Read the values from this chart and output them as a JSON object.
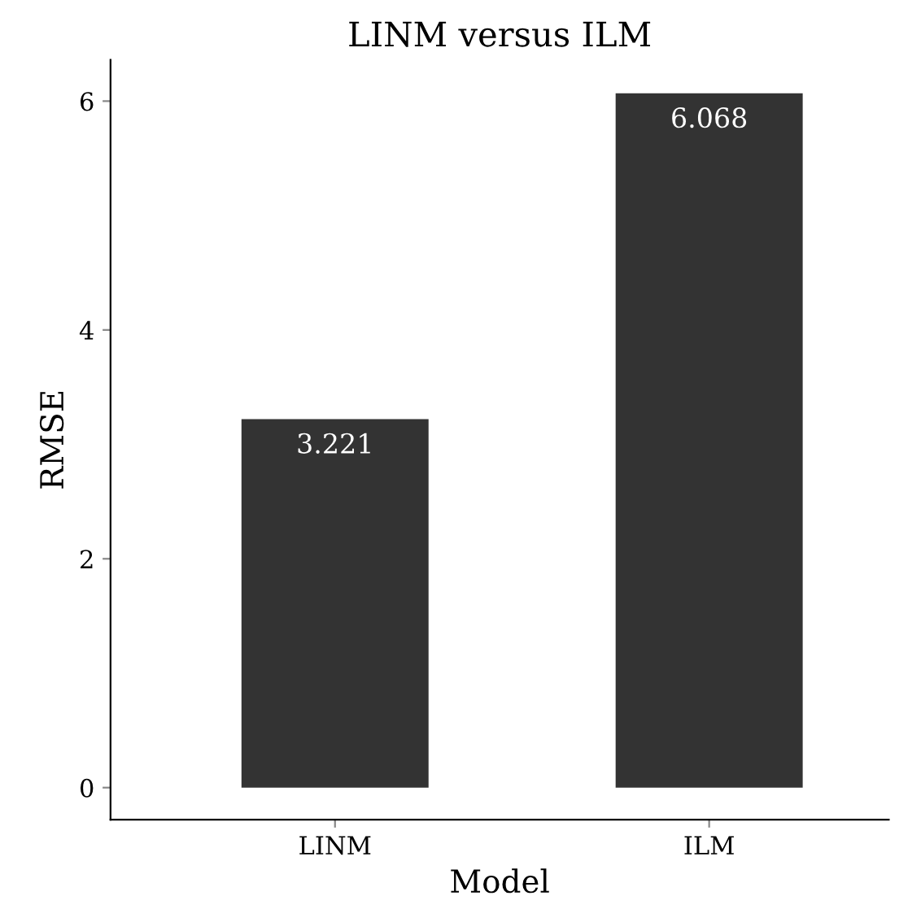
{
  "chart_data": {
    "type": "bar",
    "title": "LINM versus ILM",
    "xlabel": "Model",
    "ylabel": "RMSE",
    "categories": [
      "LINM",
      "ILM"
    ],
    "values": [
      3.221,
      6.068
    ],
    "color": "#333333",
    "ylim": [
      -0.28,
      6.36
    ],
    "yticks": [
      0,
      2,
      4,
      6
    ],
    "data_labels": true,
    "grid": false
  }
}
